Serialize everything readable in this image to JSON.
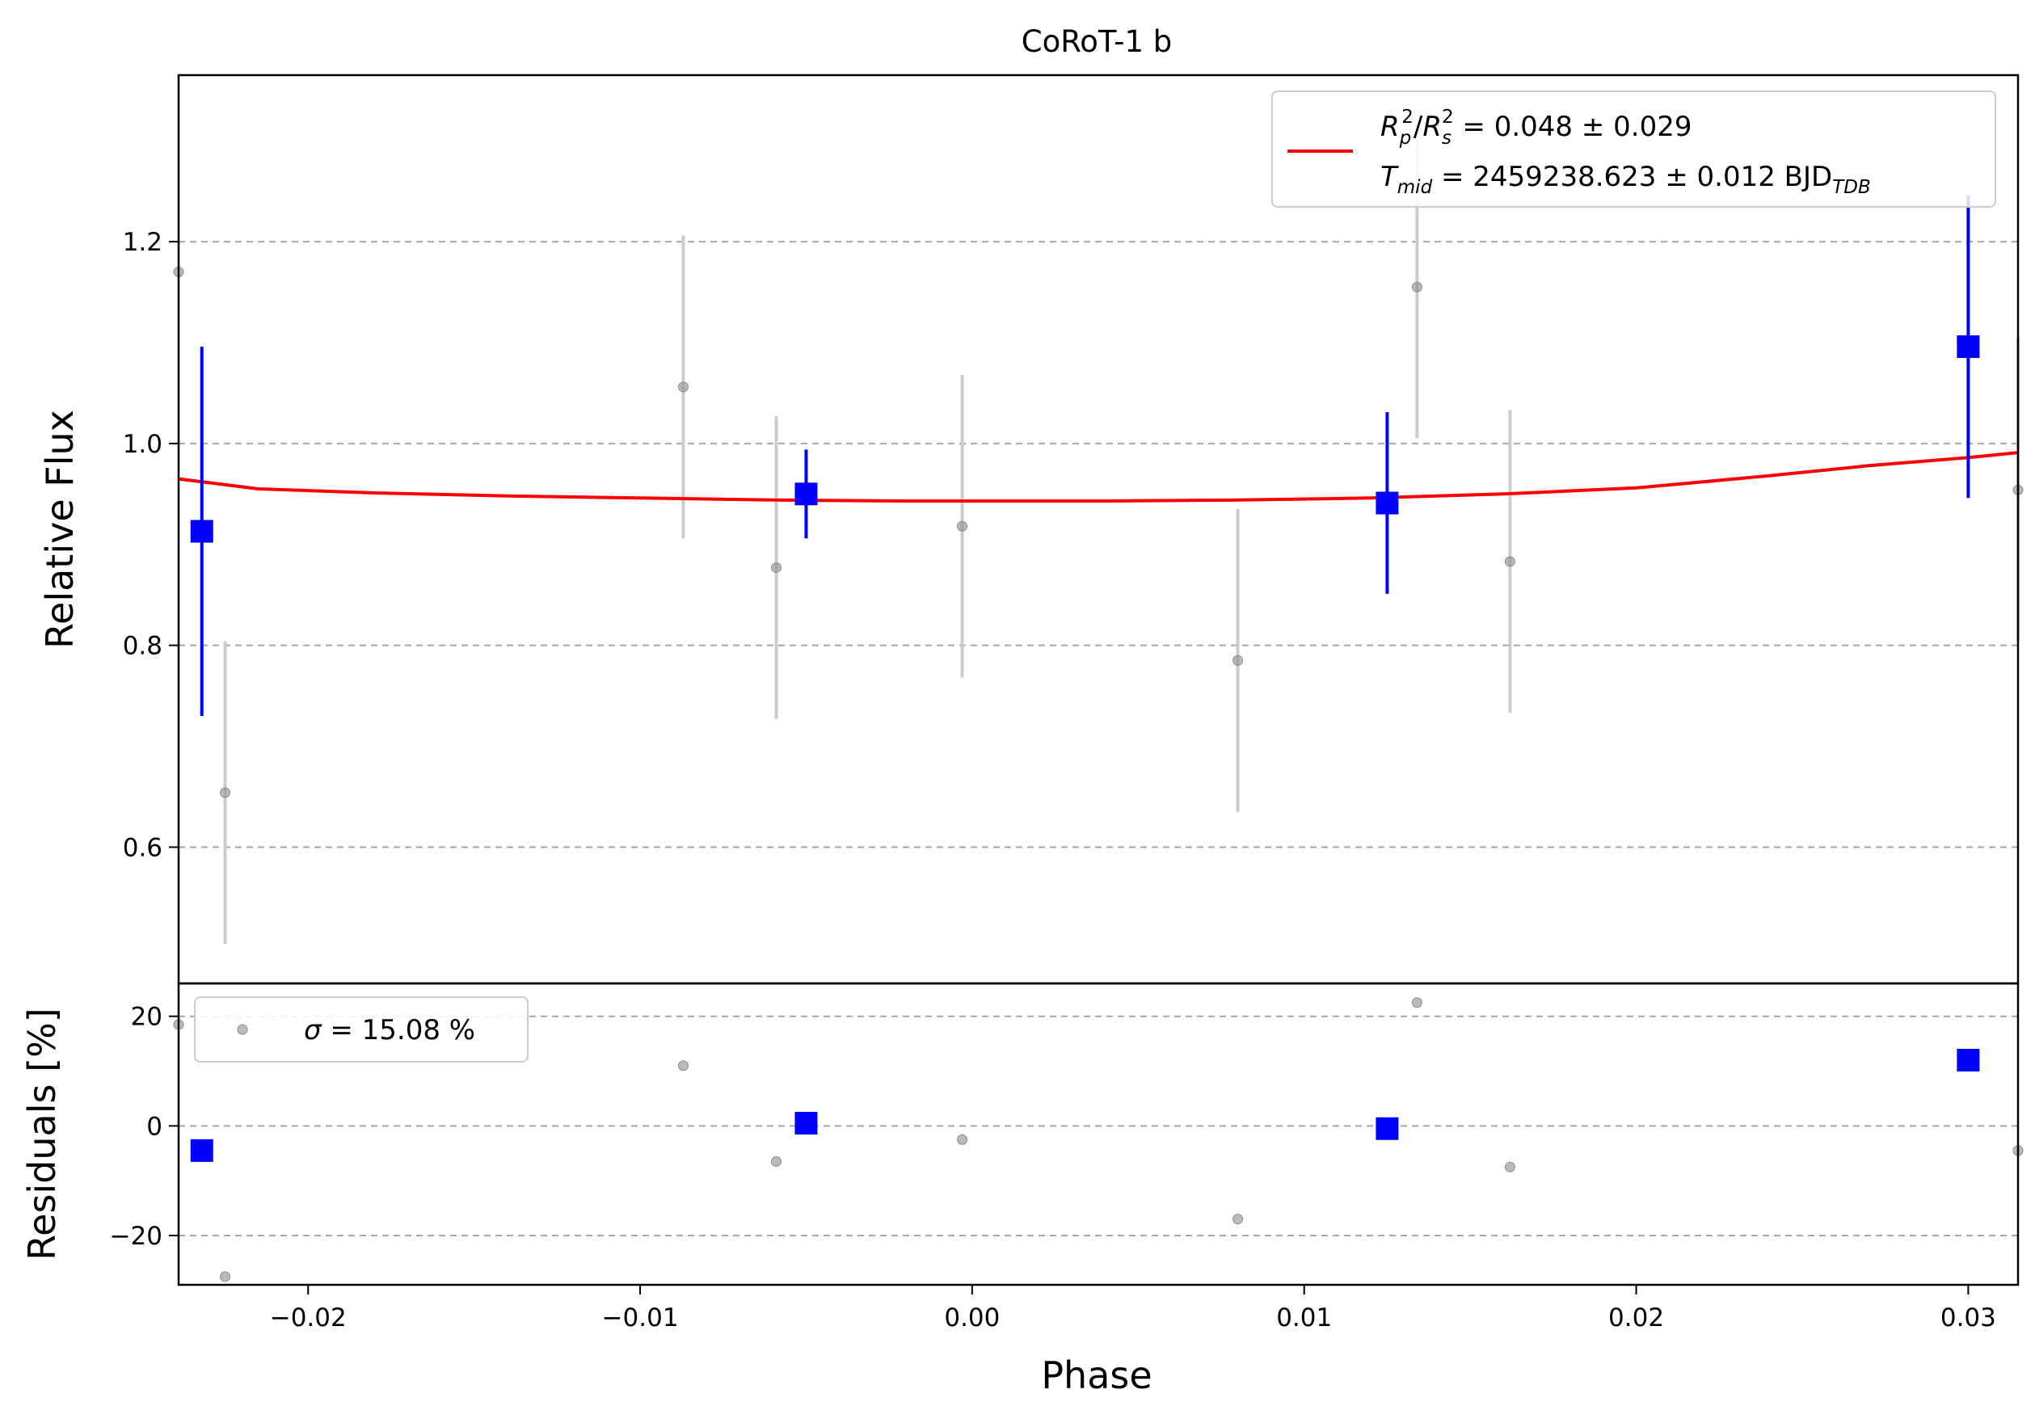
{
  "chart_data": {
    "type": "scatter",
    "title": "CoRoT-1 b",
    "xlabel": "Phase",
    "top_panel": {
      "ylabel": "Relative Flux",
      "xlim": [
        -0.0239,
        0.0315
      ],
      "ylim": [
        0.465,
        1.365
      ],
      "yticks": [
        0.6,
        0.8,
        1.0,
        1.2
      ],
      "ytick_labels": [
        "0.6",
        "0.8",
        "1.0",
        "1.2"
      ],
      "grid": "horizontal dashed",
      "legend_placement": "top-right",
      "legend": {
        "line1": {
          "a": "R",
          "a_sub": "p",
          "a_sup": "2",
          "slash": "/",
          "b": "R",
          "b_sub": "s",
          "b_sup": "2",
          "rest": " = 0.048 ± 0.029"
        },
        "line2": {
          "a": "T",
          "a_sub": "mid",
          "rest": " = 2459238.623 ± 0.012 BJD",
          "rest_sub": "TDB"
        }
      },
      "raw_points": [
        {
          "x": -0.0239,
          "y": 1.17,
          "err": 0.0
        },
        {
          "x": -0.0225,
          "y": 0.654,
          "err": 0.15
        },
        {
          "x": -0.0087,
          "y": 1.056,
          "err": 0.15
        },
        {
          "x": -0.0059,
          "y": 0.877,
          "err": 0.15
        },
        {
          "x": -0.0003,
          "y": 0.918,
          "err": 0.15
        },
        {
          "x": 0.008,
          "y": 0.785,
          "err": 0.15
        },
        {
          "x": 0.0134,
          "y": 1.155,
          "err": 0.15
        },
        {
          "x": 0.0162,
          "y": 0.883,
          "err": 0.15
        },
        {
          "x": 0.0315,
          "y": 0.954,
          "err": 0.15
        }
      ],
      "binned_points": [
        {
          "x": -0.0232,
          "y": 0.913,
          "err": 0.183
        },
        {
          "x": -0.005,
          "y": 0.95,
          "err": 0.044
        },
        {
          "x": 0.0125,
          "y": 0.941,
          "err": 0.09
        },
        {
          "x": 0.03,
          "y": 1.096,
          "err": 0.15
        }
      ],
      "model": {
        "x": [
          -0.0239,
          -0.0215,
          -0.018,
          -0.014,
          -0.01,
          -0.006,
          -0.002,
          0.0,
          0.004,
          0.008,
          0.012,
          0.016,
          0.02,
          0.024,
          0.027,
          0.03,
          0.0315
        ],
        "y": [
          0.965,
          0.955,
          0.951,
          0.948,
          0.946,
          0.944,
          0.943,
          0.943,
          0.943,
          0.944,
          0.946,
          0.95,
          0.956,
          0.968,
          0.978,
          0.986,
          0.991
        ]
      }
    },
    "bottom_panel": {
      "ylabel": "Residuals [%]",
      "xlim": [
        -0.0239,
        0.0315
      ],
      "ylim": [
        -29,
        26
      ],
      "yticks": [
        -20,
        0,
        20
      ],
      "ytick_labels": [
        "−20",
        "0",
        "20"
      ],
      "xticks": [
        -0.02,
        -0.01,
        0.0,
        0.01,
        0.02,
        0.03
      ],
      "xtick_labels": [
        "−0.02",
        "−0.01",
        "0.00",
        "0.01",
        "0.02",
        "0.03"
      ],
      "grid": "horizontal dashed",
      "legend_placement": "top-left",
      "legend": {
        "symbol": "σ",
        "rest": " = 15.08 %"
      },
      "raw_points": [
        {
          "x": -0.0239,
          "y": 18.5
        },
        {
          "x": -0.0225,
          "y": -27.5
        },
        {
          "x": -0.0087,
          "y": 11.0
        },
        {
          "x": -0.0059,
          "y": -6.5
        },
        {
          "x": -0.0003,
          "y": -2.5
        },
        {
          "x": 0.008,
          "y": -17.0
        },
        {
          "x": 0.0134,
          "y": 22.5
        },
        {
          "x": 0.0162,
          "y": -7.5
        },
        {
          "x": 0.0315,
          "y": -4.5
        }
      ],
      "binned_points": [
        {
          "x": -0.0232,
          "y": -4.5
        },
        {
          "x": -0.005,
          "y": 0.5
        },
        {
          "x": 0.0125,
          "y": -0.5
        },
        {
          "x": 0.03,
          "y": 12.0
        }
      ]
    },
    "colors": {
      "raw_marker": "#8c8c8c",
      "raw_errorbar": "#cccccc",
      "binned": "#0000ff",
      "model": "#ff0000",
      "grid": "#a6a6a6",
      "frame": "#000000"
    }
  }
}
